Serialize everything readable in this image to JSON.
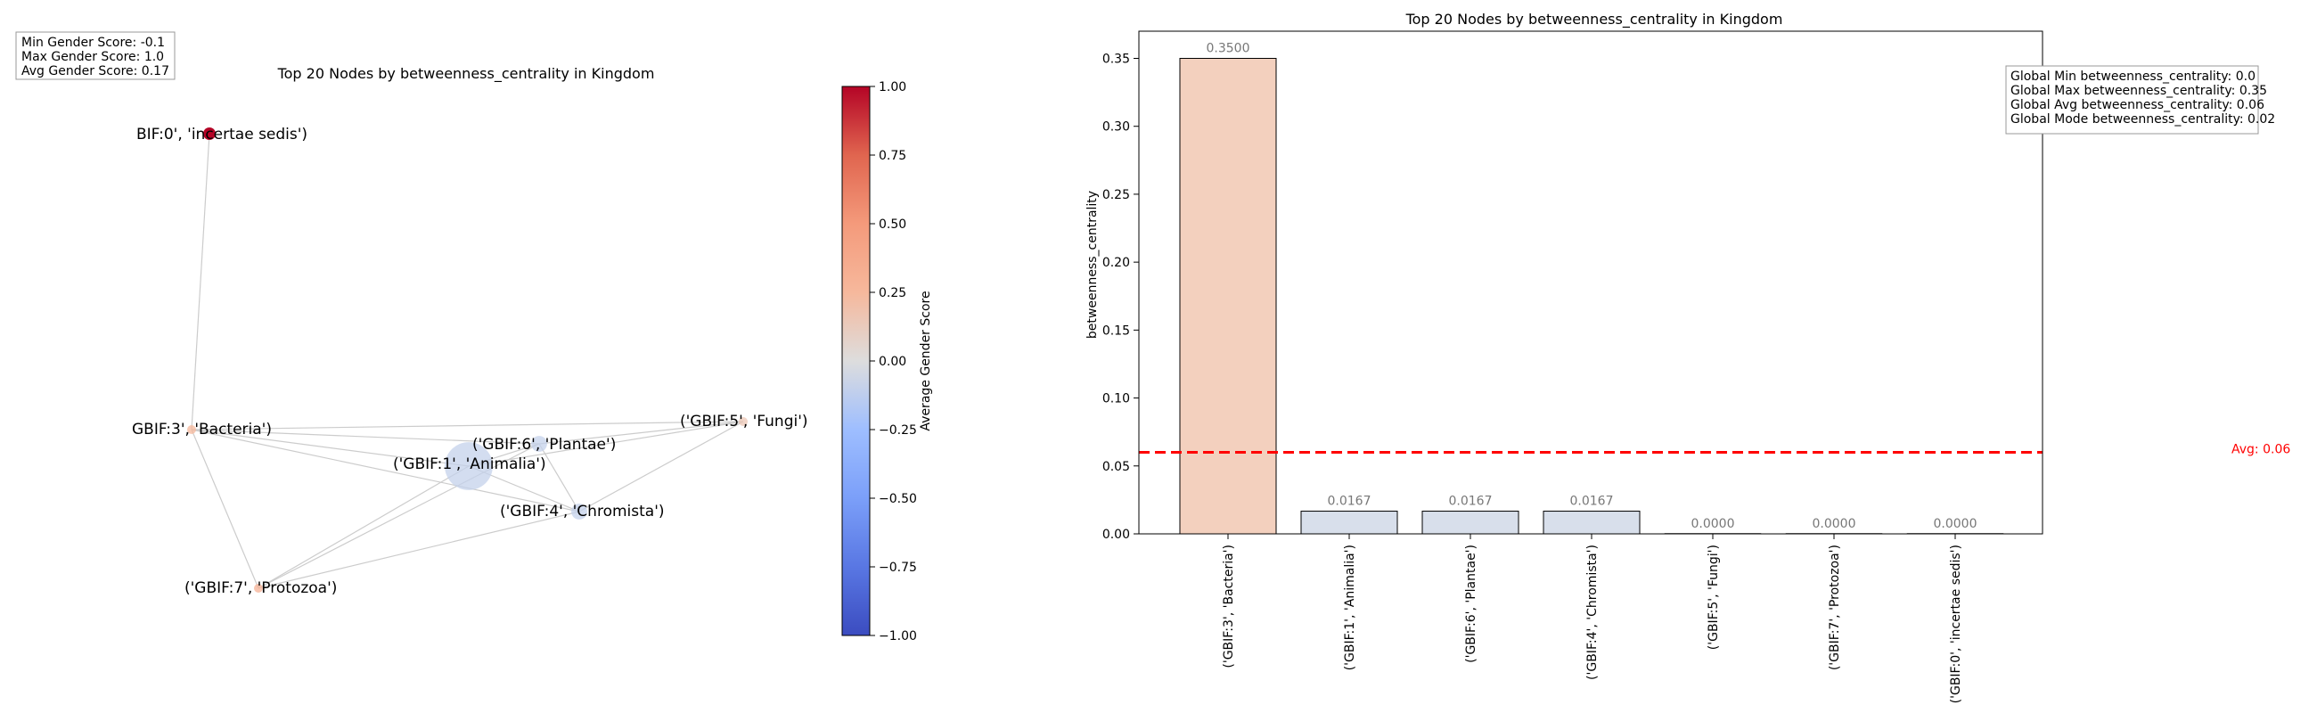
{
  "chart_data": [
    {
      "type": "network",
      "title": "Top 20 Nodes by betweenness_centrality in Kingdom",
      "stats_box": [
        "Min Gender Score: -0.1",
        "Max Gender Score: 1.0",
        "Avg Gender Score: 0.17"
      ],
      "nodes": [
        {
          "label": "('GBIF:0', 'incertae sedis')",
          "display_label": "BIF:0', 'incertae sedis')",
          "gender_score": 1.0,
          "betweenness_centrality": 0.0
        },
        {
          "label": "('GBIF:3', 'Bacteria')",
          "display_label": "GBIF:3', 'Bacteria')",
          "gender_score": 0.25,
          "betweenness_centrality": 0.35
        },
        {
          "label": "('GBIF:6', 'Plantae')",
          "display_label": "('GBIF:6', 'Plantae')",
          "gender_score": -0.1,
          "betweenness_centrality": 0.0167
        },
        {
          "label": "('GBIF:1', 'Animalia')",
          "display_label": "('GBIF:1', 'Animalia')",
          "gender_score": -0.1,
          "betweenness_centrality": 0.0167
        },
        {
          "label": "('GBIF:5', 'Fungi')",
          "display_label": "('GBIF:5', 'Fungi')",
          "gender_score": 0.15,
          "betweenness_centrality": 0.0
        },
        {
          "label": "('GBIF:4', 'Chromista')",
          "display_label": "('GBIF:4', 'Chromista')",
          "gender_score": -0.1,
          "betweenness_centrality": 0.0167
        },
        {
          "label": "('GBIF:7', 'Protozoa')",
          "display_label": "('GBIF:7', 'Protozoa')",
          "gender_score": 0.3,
          "betweenness_centrality": 0.0
        }
      ],
      "edges": [
        [
          "('GBIF:0', 'incertae sedis')",
          "('GBIF:3', 'Bacteria')"
        ],
        [
          "('GBIF:3', 'Bacteria')",
          "('GBIF:5', 'Fungi')"
        ],
        [
          "('GBIF:3', 'Bacteria')",
          "('GBIF:6', 'Plantae')"
        ],
        [
          "('GBIF:3', 'Bacteria')",
          "('GBIF:1', 'Animalia')"
        ],
        [
          "('GBIF:3', 'Bacteria')",
          "('GBIF:4', 'Chromista')"
        ],
        [
          "('GBIF:3', 'Bacteria')",
          "('GBIF:7', 'Protozoa')"
        ],
        [
          "('GBIF:5', 'Fungi')",
          "('GBIF:6', 'Plantae')"
        ],
        [
          "('GBIF:5', 'Fungi')",
          "('GBIF:1', 'Animalia')"
        ],
        [
          "('GBIF:5', 'Fungi')",
          "('GBIF:4', 'Chromista')"
        ],
        [
          "('GBIF:6', 'Plantae')",
          "('GBIF:1', 'Animalia')"
        ],
        [
          "('GBIF:6', 'Plantae')",
          "('GBIF:4', 'Chromista')"
        ],
        [
          "('GBIF:6', 'Plantae')",
          "('GBIF:7', 'Protozoa')"
        ],
        [
          "('GBIF:1', 'Animalia')",
          "('GBIF:4', 'Chromista')"
        ],
        [
          "('GBIF:1', 'Animalia')",
          "('GBIF:7', 'Protozoa')"
        ],
        [
          "('GBIF:4', 'Chromista')",
          "('GBIF:7', 'Protozoa')"
        ]
      ],
      "colorbar": {
        "label": "Average Gender Score",
        "colormap": "coolwarm",
        "range": [
          -1.0,
          1.0
        ],
        "ticks": [
          "1.00",
          "0.75",
          "0.50",
          "0.25",
          "0.00",
          "−0.25",
          "−0.50",
          "−0.75",
          "−1.00"
        ],
        "tick_values": [
          1.0,
          0.75,
          0.5,
          0.25,
          0.0,
          -0.25,
          -0.5,
          -0.75,
          -1.0
        ]
      }
    },
    {
      "type": "bar",
      "title": "Top 20 Nodes by betweenness_centrality in Kingdom",
      "xlabel": "",
      "ylabel": "betweenness_centrality",
      "ylim": [
        0,
        0.37
      ],
      "yticks": [
        0.0,
        0.05,
        0.1,
        0.15,
        0.2,
        0.25,
        0.3,
        0.35
      ],
      "ytick_labels": [
        "0.00",
        "0.05",
        "0.10",
        "0.15",
        "0.20",
        "0.25",
        "0.30",
        "0.35"
      ],
      "categories": [
        "('GBIF:3', 'Bacteria')",
        "('GBIF:1', 'Animalia')",
        "('GBIF:6', 'Plantae')",
        "('GBIF:4', 'Chromista')",
        "('GBIF:5', 'Fungi')",
        "('GBIF:7', 'Protozoa')",
        "('GBIF:0', 'incertae sedis')"
      ],
      "values": [
        0.35,
        0.0167,
        0.0167,
        0.0167,
        0.0,
        0.0,
        0.0
      ],
      "value_labels": [
        "0.3500",
        "0.0167",
        "0.0167",
        "0.0167",
        "0.0000",
        "0.0000",
        "0.0000"
      ],
      "bar_colors": [
        "#f3d0be",
        "#d8dfeb",
        "#d8dfeb",
        "#d8dfeb",
        "#d8dfeb",
        "#d8dfeb",
        "#d8dfeb"
      ],
      "avg_line": {
        "value": 0.06,
        "label": "Avg: 0.06",
        "color": "#ff0000"
      },
      "stats_box": [
        "Global Min betweenness_centrality: 0.0",
        "Global Max betweenness_centrality: 0.35",
        "Global Avg betweenness_centrality: 0.06",
        "Global Mode betweenness_centrality: 0.02"
      ],
      "grid": false,
      "legend": "none"
    }
  ]
}
